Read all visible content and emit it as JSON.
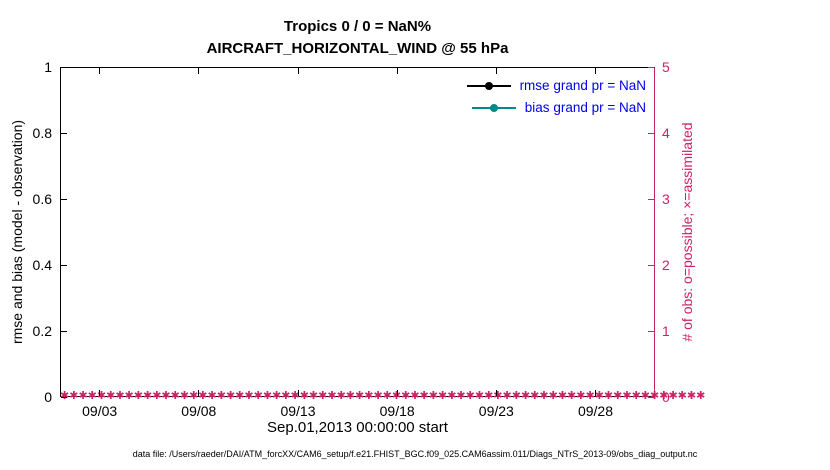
{
  "title": {
    "line1": "Tropics 0 / 0 = NaN%",
    "line2": "AIRCRAFT_HORIZONTAL_WIND @ 55 hPa"
  },
  "left_axis": {
    "label": "rmse and bias (model - observation)",
    "ticks": [
      "0",
      "0.2",
      "0.4",
      "0.6",
      "0.8",
      "1"
    ],
    "color": "#000000"
  },
  "right_axis": {
    "label": "# of obs: o=possible; ×=assimilated",
    "ticks": [
      "0",
      "1",
      "2",
      "3",
      "4",
      "5"
    ],
    "color": "#cc2266"
  },
  "x_axis": {
    "label": "Sep.01,2013 00:00:00 start",
    "ticks": [
      "09/03",
      "09/08",
      "09/13",
      "09/18",
      "09/23",
      "09/28"
    ]
  },
  "legend": {
    "text_color": "#0000ee",
    "items": [
      {
        "label": "rmse grand pr = NaN",
        "color": "#000000"
      },
      {
        "label": "bias grand pr = NaN",
        "color": "#008b8b"
      }
    ]
  },
  "obs_markers": {
    "char": "✱",
    "count": 70,
    "color": "#cc2266",
    "meaning": "assimilated observation count = 0 at every time bin"
  },
  "footer": {
    "text": "data file: /Users/raeder/DAI/ATM_forcXX/CAM6_setup/f.e21.FHIST_BGC.f09_025.CAM6assim.011/Diags_NTrS_2013-09/obs_diag_output.nc"
  },
  "chart_data": {
    "type": "line",
    "title": "Tropics 0 / 0 = NaN% — AIRCRAFT_HORIZONTAL_WIND @ 55 hPa",
    "xlabel": "Sep.01,2013 00:00:00 start",
    "x_range": [
      "2013-09-01 00:00:00",
      "2013-10-01 00:00:00"
    ],
    "x_tick_labels": [
      "09/03",
      "09/08",
      "09/13",
      "09/18",
      "09/23",
      "09/28"
    ],
    "left_ylabel": "rmse and bias (model - observation)",
    "left_ylim": [
      0,
      1
    ],
    "right_ylabel": "# of obs: o=possible; ×=assimilated",
    "right_ylim": [
      0,
      5
    ],
    "grid": false,
    "legend_position": "upper right inside, no box",
    "series": [
      {
        "name": "rmse grand pr = NaN",
        "axis": "left",
        "color": "#000000",
        "marker": "filled-circle",
        "values": "NaN — no curve plotted"
      },
      {
        "name": "bias grand pr = NaN",
        "axis": "left",
        "color": "#008b8b",
        "marker": "filled-circle",
        "values": "NaN — no curve plotted"
      },
      {
        "name": "observations possible",
        "axis": "right",
        "color": "#cc2266",
        "marker": "o",
        "constant_value": 0
      },
      {
        "name": "observations assimilated",
        "axis": "right",
        "color": "#cc2266",
        "marker": "*",
        "constant_value": 0
      }
    ],
    "notes": "0 of 0 observations (NaN%); a dense row of crimson asterisk markers lies along y=0 on the right-hand count axis for the whole of September 2013"
  }
}
